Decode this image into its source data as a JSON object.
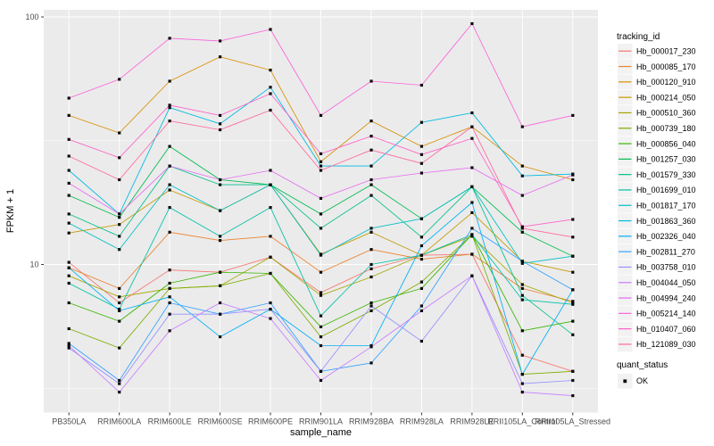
{
  "chart_data": {
    "type": "line",
    "title": "",
    "xlabel": "sample_name",
    "ylabel": "FPKM + 1",
    "y_scale": "log10",
    "y_ticks": [
      100,
      10
    ],
    "y_minor_ticks": [
      31.62,
      3.162
    ],
    "ylim": [
      2.5,
      107
    ],
    "grid": "white major+minor gridlines on gray panel",
    "legend_position": "right",
    "legend_titles": {
      "series": "tracking_id",
      "quant": "quant_status"
    },
    "quant_status_items": [
      "OK"
    ],
    "marker": "small black square at every data point",
    "categories": [
      "PB350LA",
      "RRIM600LA",
      "RRIM600LE",
      "RRIM600SE",
      "RRIM600PE",
      "RRIM901LA",
      "RRIM928BA",
      "RRIM928LA",
      "RRIM928LE",
      "RRII105LA_Control",
      "RRII105LA_Stressed"
    ],
    "series": [
      {
        "name": "Hb_000017_230",
        "color": "#F8766D",
        "values": [
          10.2,
          7.0,
          9.5,
          9.3,
          10.7,
          7.7,
          9.6,
          10.9,
          11.0,
          4.3,
          3.7
        ]
      },
      {
        "name": "Hb_000085_170",
        "color": "#EA8331",
        "values": [
          9.7,
          8.0,
          13.5,
          12.5,
          13.0,
          9.3,
          11.5,
          10.5,
          11.0,
          8.0,
          7.1
        ]
      },
      {
        "name": "Hb_000120_910",
        "color": "#D89000",
        "values": [
          40,
          34,
          55,
          69,
          61,
          26,
          38,
          30,
          36,
          25,
          22
        ]
      },
      {
        "name": "Hb_000214_050",
        "color": "#C49A00",
        "values": [
          13.4,
          14.5,
          20,
          16.5,
          21,
          11,
          13.5,
          10.9,
          16.2,
          10.3,
          9.3
        ]
      },
      {
        "name": "Hb_000510_360",
        "color": "#A3A500",
        "values": [
          9.0,
          7.4,
          8.0,
          8.2,
          10.7,
          7.5,
          8.9,
          10.9,
          13.0,
          8.3,
          7.0
        ]
      },
      {
        "name": "Hb_000739_180",
        "color": "#7CAE00",
        "values": [
          5.5,
          4.6,
          8.0,
          8.2,
          9.2,
          5.1,
          6.5,
          8.5,
          13.2,
          3.6,
          3.7
        ]
      },
      {
        "name": "Hb_000856_040",
        "color": "#39B600",
        "values": [
          7.0,
          5.9,
          8.4,
          9.3,
          9.2,
          5.6,
          7.0,
          8.0,
          13.2,
          5.4,
          5.9
        ]
      },
      {
        "name": "Hb_001257_030",
        "color": "#00BB4E",
        "values": [
          19,
          15.5,
          30,
          22,
          21,
          16,
          21,
          15.3,
          20.6,
          13.5,
          10.8
        ]
      },
      {
        "name": "Hb_001579_330",
        "color": "#00C08B",
        "values": [
          16,
          13,
          25,
          21,
          21,
          14,
          19,
          12.9,
          20.6,
          7.5,
          5.2
        ]
      },
      {
        "name": "Hb_001699_010",
        "color": "#00C1A7",
        "values": [
          8.4,
          6.6,
          17,
          13,
          17,
          6.2,
          10,
          10.9,
          13.2,
          7.2,
          6.9
        ]
      },
      {
        "name": "Hb_001817_170",
        "color": "#00BFC4",
        "values": [
          14.7,
          11.5,
          21,
          16.5,
          21,
          10.9,
          14,
          15.3,
          20.6,
          10.1,
          10.8
        ]
      },
      {
        "name": "Hb_001863_360",
        "color": "#00BAE0",
        "values": [
          24,
          16,
          43,
          37,
          52,
          25,
          25,
          37.5,
          41,
          22.8,
          23.2
        ]
      },
      {
        "name": "Hb_002326_040",
        "color": "#00B0F6",
        "values": [
          9.7,
          6.5,
          7.4,
          5.1,
          6.6,
          4.7,
          4.7,
          11.9,
          17.8,
          3.6,
          7.9
        ]
      },
      {
        "name": "Hb_002811_270",
        "color": "#35A2FF",
        "values": [
          4.8,
          3.4,
          7.0,
          6.3,
          7.0,
          3.7,
          4.0,
          6.8,
          14.0,
          10.3,
          7.9
        ]
      },
      {
        "name": "Hb_003758_010",
        "color": "#9590FF",
        "values": [
          4.6,
          3.3,
          6.3,
          6.3,
          6.6,
          3.7,
          6.8,
          4.9,
          9.0,
          3.3,
          3.4
        ]
      },
      {
        "name": "Hb_004044_050",
        "color": "#C77CFF",
        "values": [
          4.7,
          3.05,
          5.4,
          7.0,
          6.05,
          3.4,
          4.65,
          6.5,
          9.0,
          3.05,
          2.95
        ]
      },
      {
        "name": "Hb_004994_240",
        "color": "#E76BF3",
        "values": [
          21.3,
          16,
          25,
          22,
          24,
          18.5,
          22,
          23.4,
          24.6,
          19,
          23
        ]
      },
      {
        "name": "Hb_005214_140",
        "color": "#FA62DB",
        "values": [
          47,
          56,
          82,
          80,
          89,
          40,
          55,
          53,
          94,
          36,
          40
        ]
      },
      {
        "name": "Hb_010407_060",
        "color": "#FF61C9",
        "values": [
          32,
          27,
          44,
          40,
          49,
          28,
          33,
          27.8,
          32.3,
          14.2,
          15.2
        ]
      },
      {
        "name": "Hb_121089_030",
        "color": "#FF689F",
        "values": [
          27.4,
          22,
          38,
          35,
          42,
          24,
          29,
          25.6,
          36,
          14,
          12.9
        ]
      }
    ]
  },
  "style": {
    "panel_bg": "#EBEBEB",
    "gridline_color": "#FFFFFF",
    "legend_key_bg": "#F2F2F2",
    "tick_label_color": "#4D4D4D",
    "tick_mark_color": "#333333",
    "point_color": "#0A0A0A"
  }
}
